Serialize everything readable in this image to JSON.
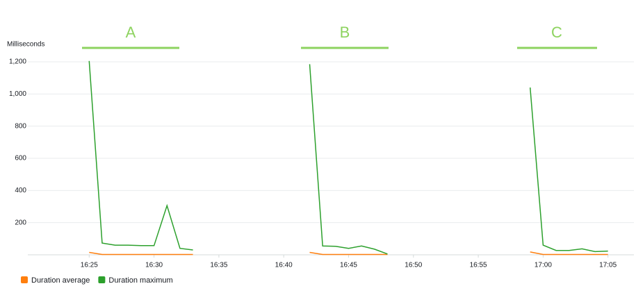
{
  "chart_data": {
    "type": "line",
    "y_label": "Milliseconds",
    "annotations": [
      "A",
      "B",
      "C"
    ],
    "x": [
      "16:25",
      "16:26",
      "16:27",
      "16:28",
      "16:29",
      "16:30",
      "16:31",
      "16:32",
      "16:33",
      "16:34",
      "16:35",
      "16:36",
      "16:37",
      "16:38",
      "16:39",
      "16:40",
      "16:41",
      "16:42",
      "16:43",
      "16:44",
      "16:45",
      "16:46",
      "16:47",
      "16:48",
      "16:49",
      "16:50",
      "16:51",
      "16:52",
      "16:53",
      "16:54",
      "16:55",
      "16:56",
      "16:57",
      "16:58",
      "16:59",
      "17:00",
      "17:01",
      "17:02",
      "17:03",
      "17:04",
      "17:05"
    ],
    "xlim": [
      "16:20",
      "17:07"
    ],
    "xticks": [
      "16:25",
      "16:30",
      "16:35",
      "16:40",
      "16:45",
      "16:50",
      "16:55",
      "17:00",
      "17:05"
    ],
    "ylim": [
      0,
      1200
    ],
    "yticks": [
      200,
      400,
      600,
      800,
      {
        "value": 1000,
        "label": "1,000"
      },
      {
        "value": 1200,
        "label": "1,200"
      }
    ],
    "grid": true,
    "legend": "bottom-left",
    "series": [
      {
        "name": "Duration average",
        "color": "#ff7f0e",
        "values": [
          15,
          2,
          2,
          2,
          2,
          2,
          2,
          2,
          2,
          null,
          null,
          null,
          null,
          null,
          null,
          null,
          null,
          15,
          2,
          2,
          2,
          2,
          2,
          2,
          null,
          null,
          null,
          null,
          null,
          null,
          null,
          null,
          null,
          null,
          18,
          2,
          2,
          2,
          2,
          2,
          2
        ]
      },
      {
        "name": "Duration maximum",
        "color": "#2ca02c",
        "values": [
          1205,
          73,
          60,
          60,
          57,
          57,
          306,
          40,
          30,
          null,
          null,
          null,
          null,
          null,
          null,
          null,
          null,
          1185,
          55,
          53,
          40,
          55,
          35,
          5,
          null,
          null,
          null,
          null,
          null,
          null,
          null,
          null,
          null,
          null,
          1040,
          60,
          27,
          27,
          37,
          20,
          23
        ]
      }
    ]
  }
}
